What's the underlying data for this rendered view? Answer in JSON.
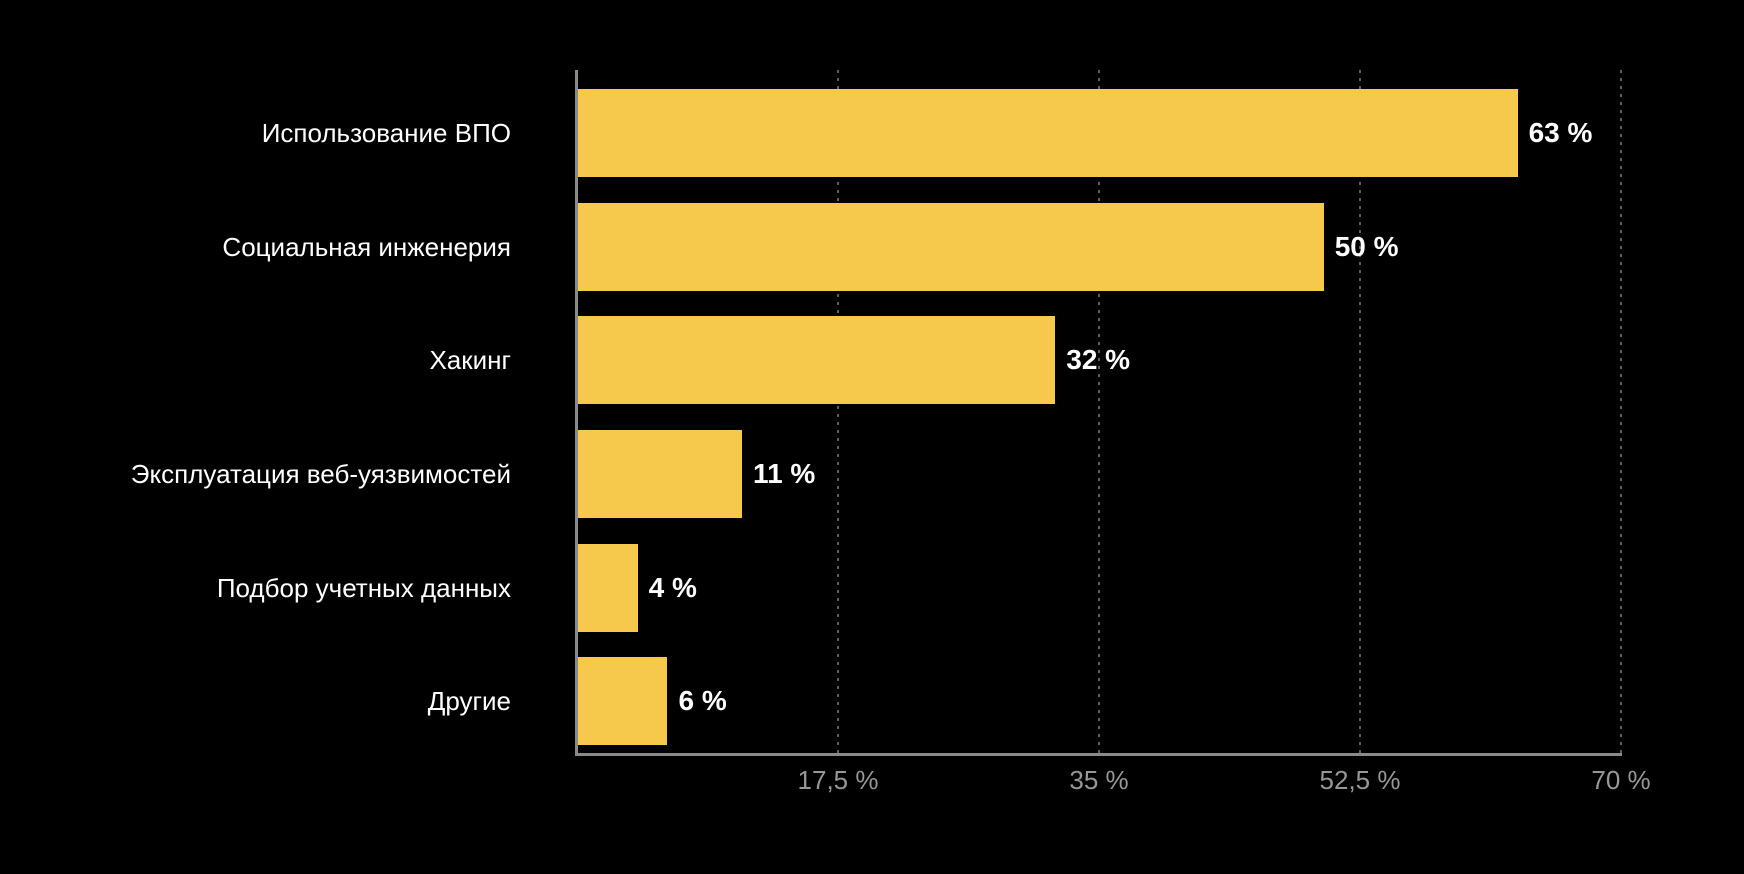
{
  "chart_data": {
    "type": "bar",
    "orientation": "horizontal",
    "title": "",
    "categories": [
      "Использование ВПО",
      "Социальная инженерия",
      "Хакинг",
      "Эксплуатация веб-уязвимостей",
      "Подбор учетных данных",
      "Другие"
    ],
    "values": [
      63,
      50,
      32,
      11,
      4,
      6
    ],
    "value_labels": [
      "63 %",
      "50 %",
      "32 %",
      "11 %",
      "4 %",
      "6 %"
    ],
    "xlabel": "",
    "ylabel": "",
    "xlim": [
      0,
      70
    ],
    "x_ticks": [
      {
        "value": 17.5,
        "label": "17,5 %"
      },
      {
        "value": 35,
        "label": "35 %"
      },
      {
        "value": 52.5,
        "label": "52,5 %"
      },
      {
        "value": 70,
        "label": "70 %"
      }
    ],
    "grid": "vertical-dotted",
    "legend": "none",
    "colors": {
      "background": "#000000",
      "bar": "#F6C94D",
      "text": "#FFFFFF",
      "axis": "#8A8A8A",
      "gridline": "#5E5E5E",
      "tick_label": "#979797"
    }
  }
}
